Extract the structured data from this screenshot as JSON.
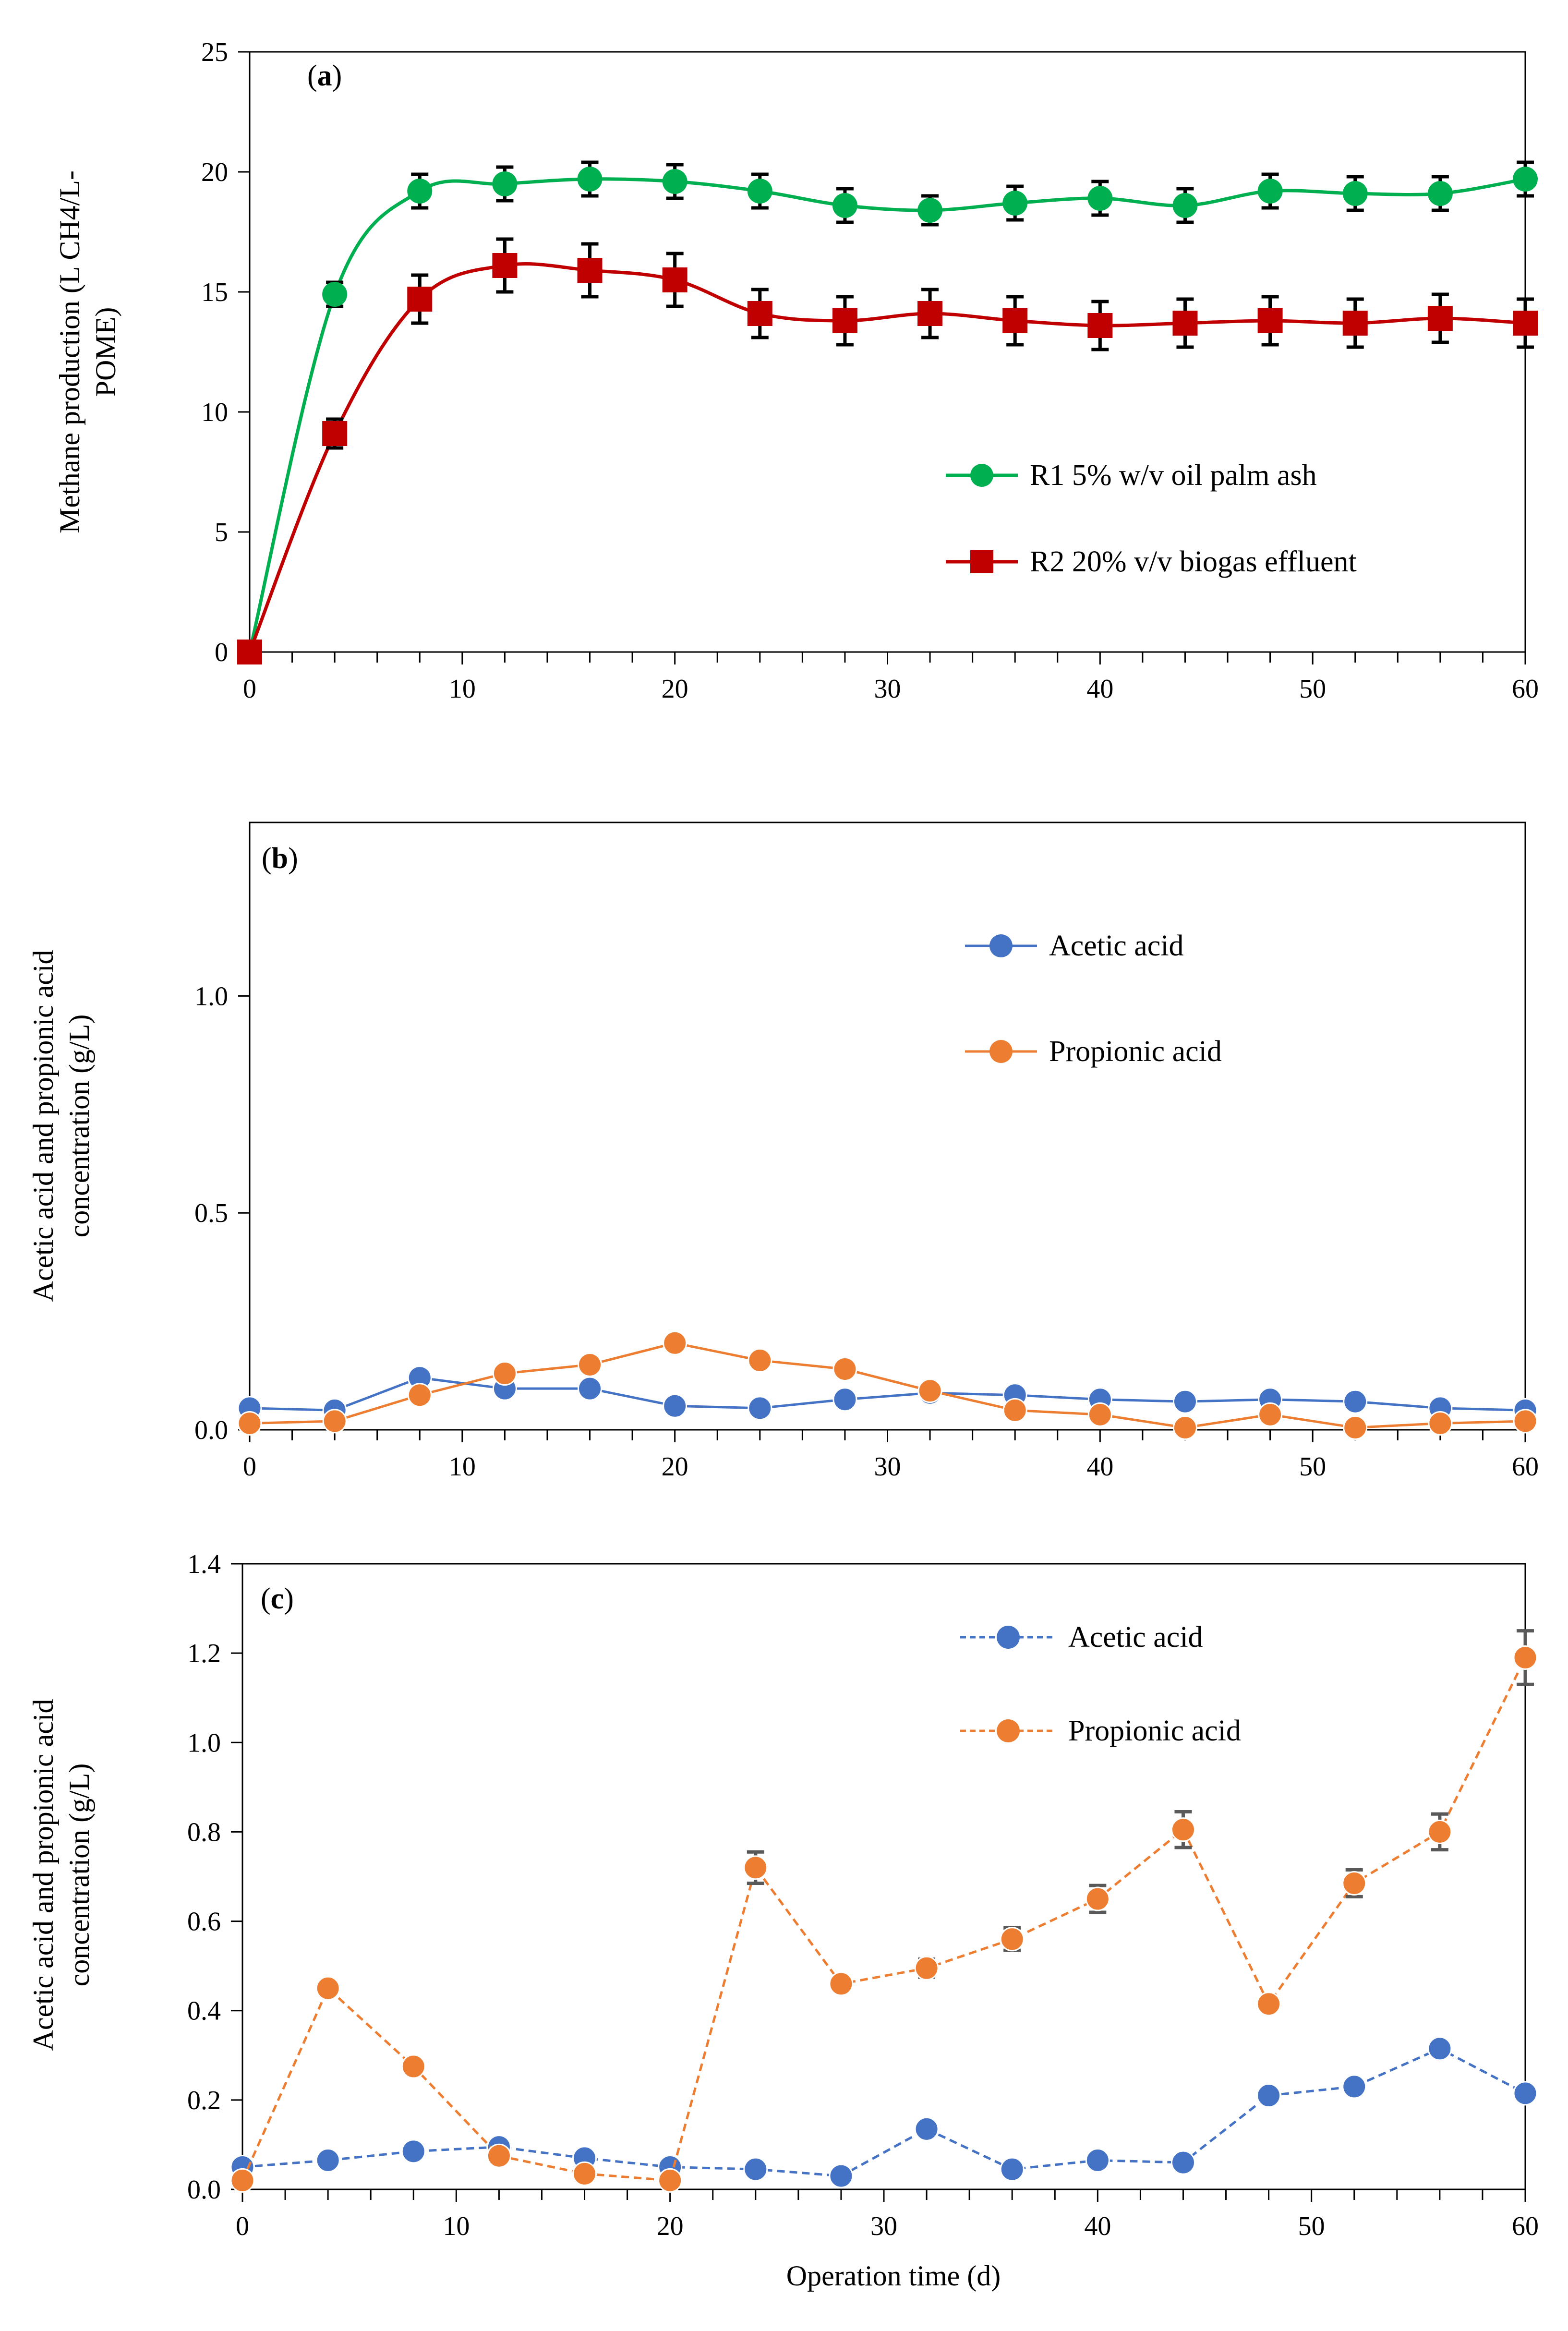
{
  "chart_data": [
    {
      "type": "line",
      "panel": "(a)",
      "panel_letter": "a",
      "xlabel": "",
      "ylabel": "Methane production (L CH4/L-POME)",
      "ylabel_lines": [
        "Methane production (L CH4/L-",
        "POME)"
      ],
      "xlim": [
        0,
        60
      ],
      "ylim": [
        0,
        25
      ],
      "xticks": [
        0,
        10,
        20,
        30,
        40,
        50,
        60
      ],
      "yticks": [
        0,
        5,
        10,
        15,
        20,
        25
      ],
      "ytick_labels": [
        "0",
        "5",
        "10",
        "15",
        "20",
        "25"
      ],
      "x": [
        0,
        4,
        8,
        12,
        16,
        20,
        24,
        28,
        32,
        36,
        40,
        44,
        48,
        52,
        56,
        60
      ],
      "grid": false,
      "legend_position": "bottom-right",
      "series": [
        {
          "name": "R1 5% w/v oil palm ash",
          "color": "#00b050",
          "marker": "circle",
          "dashed": false,
          "smooth": true,
          "values": [
            0,
            14.9,
            19.2,
            19.5,
            19.7,
            19.6,
            19.2,
            18.6,
            18.4,
            18.7,
            18.9,
            18.6,
            19.2,
            19.1,
            19.1,
            19.7
          ],
          "errors": [
            0,
            0.5,
            0.7,
            0.7,
            0.7,
            0.7,
            0.7,
            0.7,
            0.6,
            0.7,
            0.7,
            0.7,
            0.7,
            0.7,
            0.7,
            0.7
          ]
        },
        {
          "name": "R2 20% v/v biogas effluent",
          "color": "#c00000",
          "marker": "square",
          "dashed": false,
          "smooth": true,
          "values": [
            0,
            9.1,
            14.7,
            16.1,
            15.9,
            15.5,
            14.1,
            13.8,
            14.1,
            13.8,
            13.6,
            13.7,
            13.8,
            13.7,
            13.9,
            13.7
          ],
          "errors": [
            0,
            0.6,
            1.0,
            1.1,
            1.1,
            1.1,
            1.0,
            1.0,
            1.0,
            1.0,
            1.0,
            1.0,
            1.0,
            1.0,
            1.0,
            1.0
          ]
        }
      ]
    },
    {
      "type": "line",
      "panel": "(b)",
      "panel_letter": "b",
      "xlabel": "",
      "ylabel": "Acetic acid and propionic acid concentration (g/L)",
      "ylabel_lines": [
        "Acetic acid and propionic acid",
        "concentration (g/L)"
      ],
      "xlim": [
        0,
        60
      ],
      "ylim": [
        0,
        1.4
      ],
      "xticks": [
        0,
        10,
        20,
        30,
        40,
        50,
        60
      ],
      "yticks": [
        0,
        0.5,
        1.0
      ],
      "ytick_labels": [
        "0.0",
        "0.5",
        "1.0"
      ],
      "x": [
        0,
        4,
        8,
        12,
        16,
        20,
        24,
        28,
        32,
        36,
        40,
        44,
        48,
        52,
        56,
        60
      ],
      "grid": false,
      "legend_position": "top-right",
      "series": [
        {
          "name": "Acetic acid",
          "color": "#4472c4",
          "marker": "circle",
          "dashed": false,
          "smooth": false,
          "values": [
            0.05,
            0.045,
            0.12,
            0.095,
            0.095,
            0.055,
            0.05,
            0.07,
            0.085,
            0.08,
            0.07,
            0.065,
            0.07,
            0.065,
            0.05,
            0.045
          ]
        },
        {
          "name": "Propionic acid",
          "color": "#ed7d31",
          "marker": "circle",
          "dashed": false,
          "smooth": false,
          "values": [
            0.015,
            0.02,
            0.08,
            0.13,
            0.15,
            0.2,
            0.16,
            0.14,
            0.09,
            0.045,
            0.035,
            0.005,
            0.035,
            0.005,
            0.015,
            0.02
          ]
        }
      ]
    },
    {
      "type": "line",
      "panel": "(c)",
      "panel_letter": "c",
      "xlabel": "Operation time (d)",
      "ylabel": "Acetic acid and propionic acid concentration (g/L)",
      "ylabel_lines": [
        "Acetic acid and propionic acid",
        "concentration (g/L)"
      ],
      "xlim": [
        0,
        60
      ],
      "ylim": [
        0,
        1.4
      ],
      "xticks": [
        0,
        10,
        20,
        30,
        40,
        50,
        60
      ],
      "yticks": [
        0,
        0.2,
        0.4,
        0.6,
        0.8,
        1.0,
        1.2,
        1.4
      ],
      "ytick_labels": [
        "0.0",
        "0.2",
        "0.4",
        "0.6",
        "0.8",
        "1.0",
        "1.2",
        "1.4"
      ],
      "x": [
        0,
        4,
        8,
        12,
        16,
        20,
        24,
        28,
        32,
        36,
        40,
        44,
        48,
        52,
        56,
        60
      ],
      "grid": false,
      "legend_position": "top-center",
      "series": [
        {
          "name": "Acetic acid",
          "color": "#4472c4",
          "marker": "circle",
          "dashed": true,
          "smooth": false,
          "values": [
            0.05,
            0.065,
            0.085,
            0.095,
            0.07,
            0.05,
            0.045,
            0.03,
            0.135,
            0.045,
            0.065,
            0.06,
            0.21,
            0.23,
            0.315,
            0.215
          ]
        },
        {
          "name": "Propionic acid",
          "color": "#ed7d31",
          "marker": "circle",
          "dashed": true,
          "smooth": false,
          "values": [
            0.02,
            0.45,
            0.275,
            0.075,
            0.035,
            0.02,
            0.72,
            0.46,
            0.495,
            0.56,
            0.65,
            0.805,
            0.415,
            0.685,
            0.8,
            1.19
          ],
          "errors": [
            0,
            0.015,
            0.015,
            0.01,
            0.005,
            0.005,
            0.035,
            0.015,
            0.02,
            0.025,
            0.03,
            0.04,
            0.015,
            0.03,
            0.04,
            0.06
          ]
        }
      ]
    }
  ]
}
